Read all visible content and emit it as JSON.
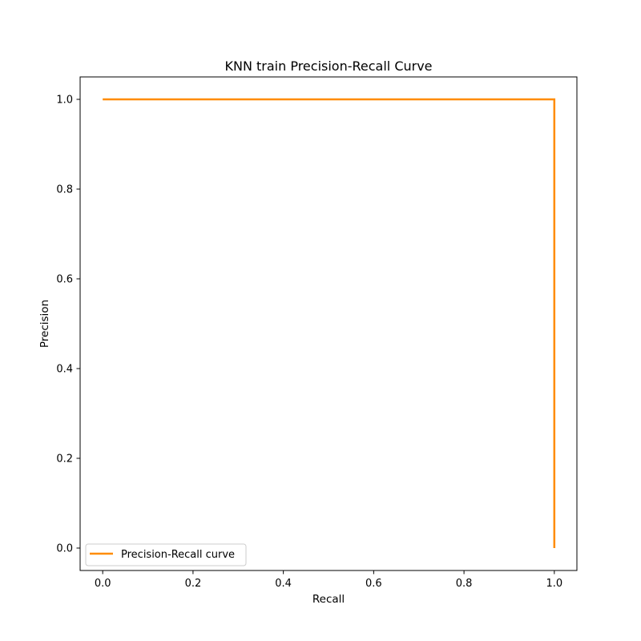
{
  "chart_data": {
    "type": "line",
    "title": "KNN train Precision-Recall Curve",
    "xlabel": "Recall",
    "ylabel": "Precision",
    "xlim": [
      -0.05,
      1.05
    ],
    "ylim": [
      -0.05,
      1.05
    ],
    "xticks": [
      "0.0",
      "0.2",
      "0.4",
      "0.6",
      "0.8",
      "1.0"
    ],
    "yticks": [
      "0.0",
      "0.2",
      "0.4",
      "0.6",
      "0.8",
      "1.0"
    ],
    "grid": false,
    "legend_position": "lower-left",
    "series": [
      {
        "name": "Precision-Recall curve",
        "color": "#ff8c00",
        "x": [
          0.0,
          1.0,
          1.0
        ],
        "y": [
          1.0,
          1.0,
          0.0
        ]
      }
    ]
  }
}
